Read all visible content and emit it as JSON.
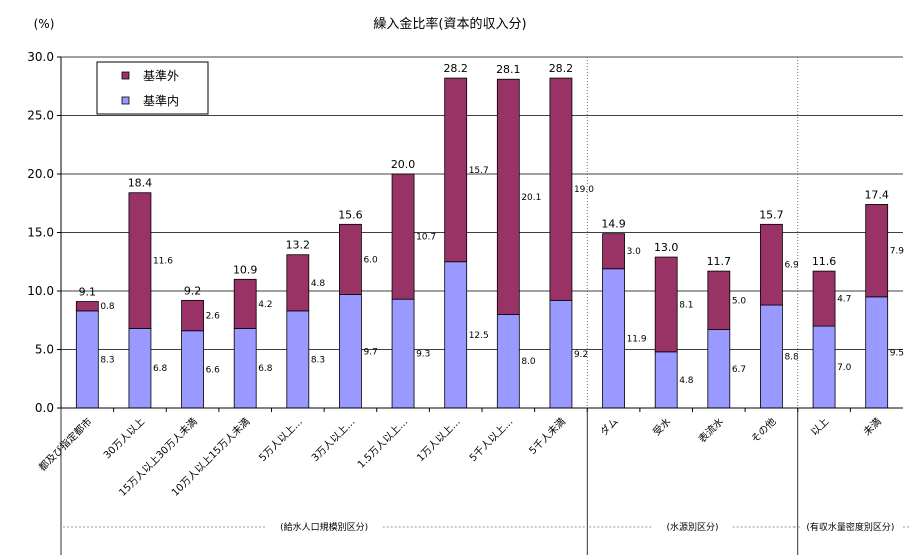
{
  "chart_data": {
    "type": "bar",
    "stacked": true,
    "title": "繰入金比率(資本的収入分)",
    "ylabel": "(%)",
    "ylim": [
      0,
      30
    ],
    "yticks": [
      "0.0",
      "5.0",
      "10.0",
      "15.0",
      "20.0",
      "25.0",
      "30.0"
    ],
    "grid": true,
    "legend_position": "top-left",
    "categories": [
      "都及び指定都市",
      "30万人以上",
      "15万人以上30万人未満",
      "10万人以上15万人未満",
      "5万人以上…",
      "3万人以上…",
      "1.5万人以上…",
      "1万人以上…",
      "5千人以上…",
      "5千人未満",
      "ダム",
      "受水",
      "表流水",
      "その他",
      "以上",
      "未満"
    ],
    "series": [
      {
        "name": "基準内",
        "color": "#9999ff",
        "values": [
          8.3,
          6.8,
          6.6,
          6.8,
          8.3,
          9.7,
          9.3,
          12.5,
          8.0,
          9.2,
          11.9,
          4.8,
          6.7,
          8.8,
          7.0,
          9.5
        ],
        "labels": [
          "8.3",
          "6.8",
          "6.6",
          "6.8",
          "8.3",
          "9.7",
          "9.3",
          "12.5",
          "8.0",
          "9.2",
          "11.9",
          "4.8",
          "6.7",
          "8.8",
          "7.0",
          "9.5"
        ]
      },
      {
        "name": "基準外",
        "color": "#993366",
        "values": [
          0.8,
          11.6,
          2.6,
          4.2,
          4.8,
          6.0,
          10.7,
          15.7,
          20.1,
          19.0,
          3.0,
          8.1,
          5.0,
          6.9,
          4.7,
          7.9
        ],
        "labels": [
          "0.8",
          "11.6",
          "2.6",
          "4.2",
          "4.8",
          "6.0",
          "10.7",
          "15.7",
          "20.1",
          "19.0",
          "3.0",
          "8.1",
          "5.0",
          "6.9",
          "4.7",
          "7.9"
        ]
      }
    ],
    "totals": [
      9.1,
      18.4,
      9.2,
      10.9,
      13.2,
      15.6,
      20.0,
      28.2,
      28.1,
      28.2,
      14.9,
      13.0,
      11.7,
      15.7,
      11.6,
      17.4
    ],
    "total_labels": [
      "9.1",
      "18.4",
      "9.2",
      "10.9",
      "13.2",
      "15.6",
      "20.0",
      "28.2",
      "28.1",
      "28.2",
      "14.9",
      "13.0",
      "11.7",
      "15.7",
      "11.6",
      "17.4"
    ],
    "groups": [
      {
        "label": "(給水人口規模別区分)",
        "from": 0,
        "to": 9
      },
      {
        "label": "(水源別区分)",
        "from": 10,
        "to": 13
      },
      {
        "label": "(有収水量密度別区分)",
        "from": 14,
        "to": 15
      }
    ]
  }
}
